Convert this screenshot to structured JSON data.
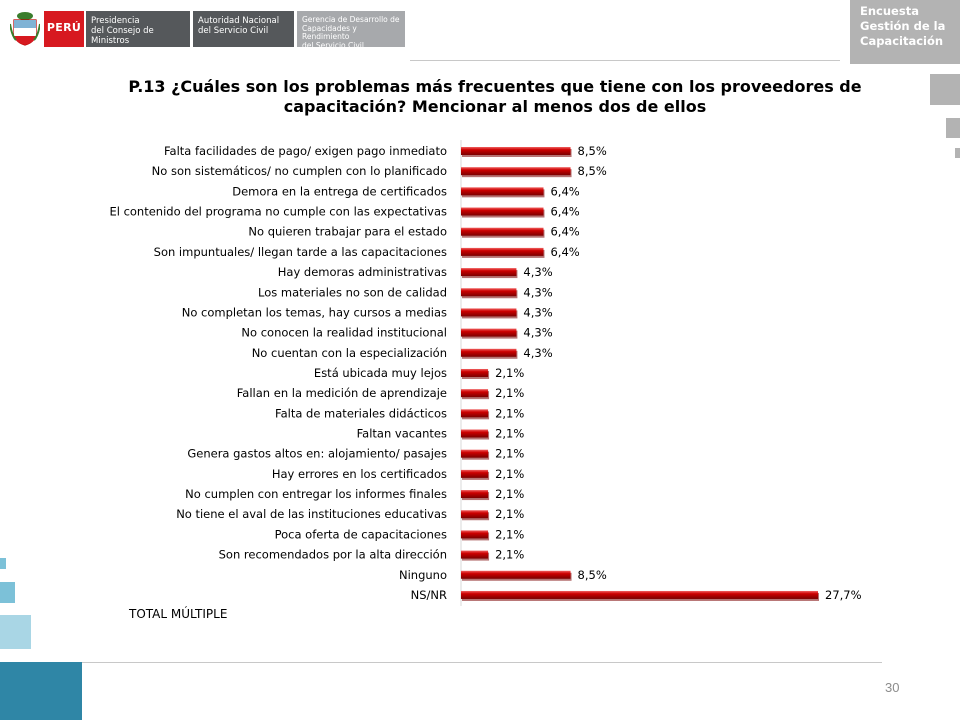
{
  "header": {
    "logo_text": "PERÚ",
    "org1_line1": "Presidencia",
    "org1_line2": "del Consejo de Ministros",
    "org2_line1": "Autoridad Nacional",
    "org2_line2": "del Servicio Civil",
    "org3_line1": "Gerencia de Desarrollo de",
    "org3_line2": "Capacidades y Rendimiento",
    "org3_line3": "del Servicio Civil",
    "corner_line1": "Encuesta",
    "corner_line2": "Gestión de la",
    "corner_line3": "Capacitación"
  },
  "colors": {
    "bar": "#cc0000",
    "bar_highlight": "#f06060",
    "bar_shadow": "#7a0000",
    "header_gray": "#b3b3b3",
    "accent_blue": "#2f86a6"
  },
  "footer": {
    "page_number": "30"
  },
  "total_label": "TOTAL MÚLTIPLE",
  "chart_data": {
    "type": "bar",
    "orientation": "horizontal",
    "title": "P.13 ¿Cuáles son los problemas más frecuentes que tiene con los proveedores de capacitación? Mencionar al menos dos de ellos",
    "categories": [
      "Falta facilidades de pago/ exigen pago inmediato",
      "No son sistemáticos/ no cumplen con lo planificado",
      "Demora en la entrega de certificados",
      "El contenido del programa no cumple con las expectativas",
      "No quieren trabajar para el estado",
      "Son impuntuales/ llegan tarde a las capacitaciones",
      "Hay demoras administrativas",
      "Los materiales no son de calidad",
      "No completan los temas, hay cursos a medias",
      "No conocen la realidad institucional",
      "No cuentan con la especialización",
      "Está ubicada muy lejos",
      "Fallan en la medición de aprendizaje",
      "Falta de materiales didácticos",
      "Faltan vacantes",
      "Genera gastos altos en: alojamiento/ pasajes",
      "Hay errores en los certificados",
      "No cumplen con entregar los informes finales",
      "No tiene el aval de las instituciones educativas",
      "Poca oferta de capacitaciones",
      "Son recomendados por la alta dirección",
      "Ninguno",
      "NS/NR"
    ],
    "values": [
      8.5,
      8.5,
      6.4,
      6.4,
      6.4,
      6.4,
      4.3,
      4.3,
      4.3,
      4.3,
      4.3,
      2.1,
      2.1,
      2.1,
      2.1,
      2.1,
      2.1,
      2.1,
      2.1,
      2.1,
      2.1,
      8.5,
      27.7
    ],
    "value_labels": [
      "8,5%",
      "8,5%",
      "6,4%",
      "6,4%",
      "6,4%",
      "6,4%",
      "4,3%",
      "4,3%",
      "4,3%",
      "4,3%",
      "4,3%",
      "2,1%",
      "2,1%",
      "2,1%",
      "2,1%",
      "2,1%",
      "2,1%",
      "2,1%",
      "2,1%",
      "2,1%",
      "2,1%",
      "8,5%",
      "27,7%"
    ],
    "xlim": [
      0,
      27.7
    ],
    "grid": false,
    "legend": "none"
  }
}
